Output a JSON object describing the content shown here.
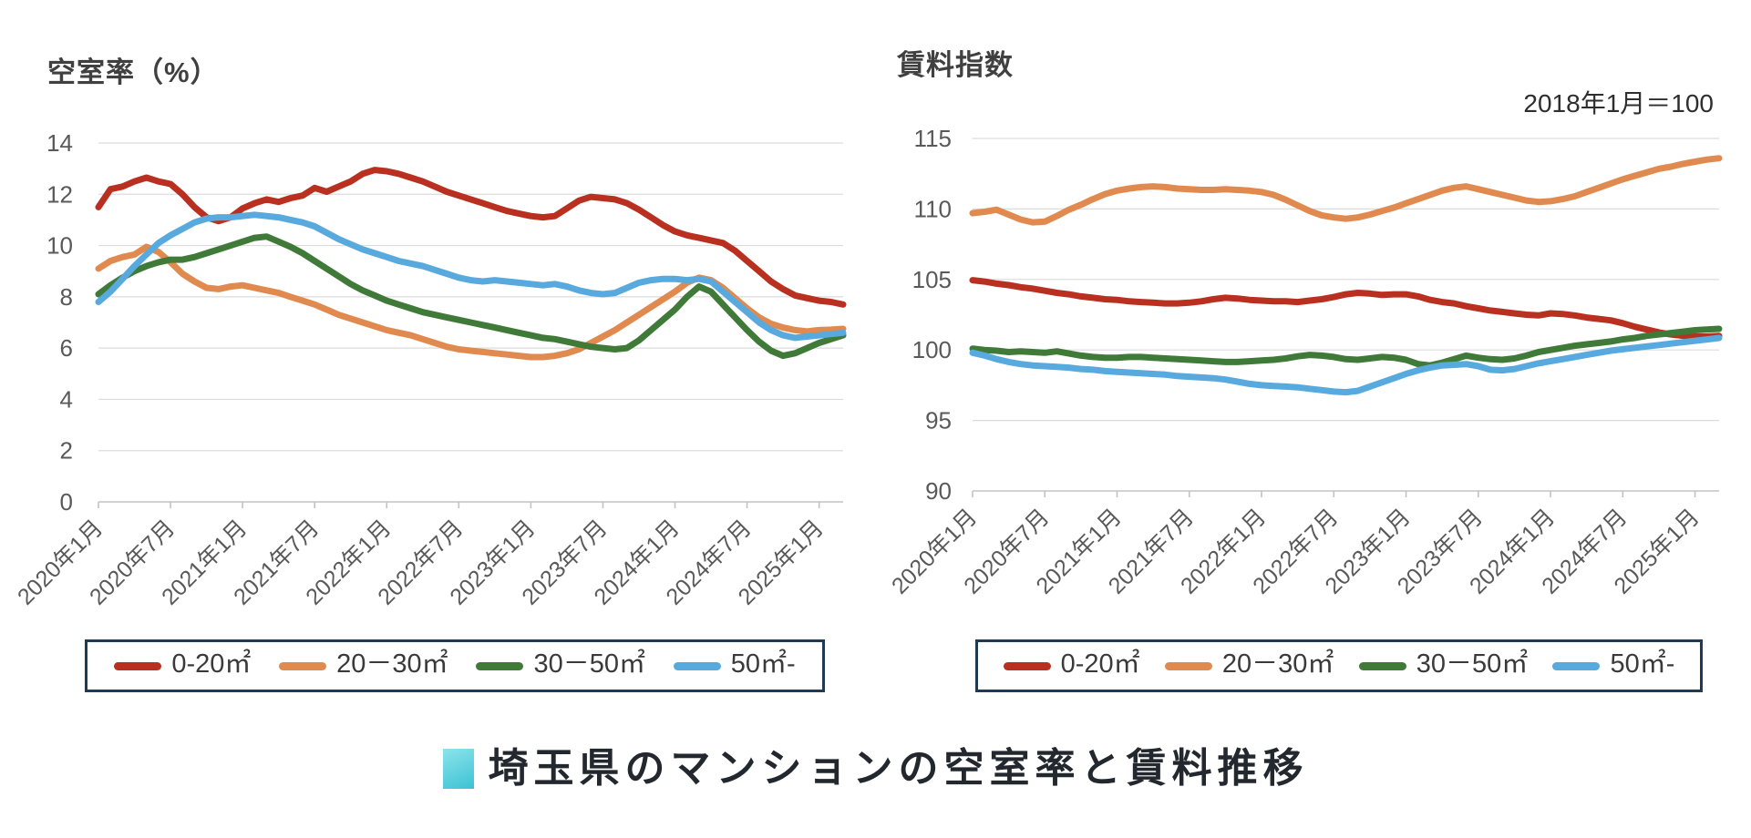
{
  "caption": {
    "text": "埼玉県のマンションの空室率と賃料推移",
    "accent_from": "#8ce4ec",
    "accent_to": "#3cc2d3"
  },
  "legend_border_color": "#203a54",
  "chart_data": [
    {
      "id": "vacancy-rate",
      "type": "line",
      "title": "空室率（%）",
      "xlabel": "",
      "ylabel": "空室率（%）",
      "ylim": [
        0,
        14
      ],
      "ytick_step": 2,
      "grid": true,
      "legend_position": "bottom",
      "x_start": "2020年1月",
      "x_interval": "monthly",
      "x_tick_labels": [
        "2020年1月",
        "2020年7月",
        "2021年1月",
        "2021年7月",
        "2022年1月",
        "2022年7月",
        "2023年1月",
        "2023年7月",
        "2024年1月",
        "2024年7月",
        "2025年1月"
      ],
      "series": [
        {
          "name": "0-20㎡",
          "color": "#b93020",
          "values": [
            11.5,
            12.2,
            12.3,
            12.5,
            12.65,
            12.5,
            12.4,
            12.0,
            11.5,
            11.1,
            10.95,
            11.1,
            11.45,
            11.65,
            11.8,
            11.7,
            11.85,
            11.95,
            12.25,
            12.1,
            12.3,
            12.5,
            12.8,
            12.95,
            12.9,
            12.8,
            12.65,
            12.5,
            12.3,
            12.1,
            11.95,
            11.8,
            11.65,
            11.5,
            11.35,
            11.25,
            11.15,
            11.1,
            11.15,
            11.45,
            11.75,
            11.9,
            11.85,
            11.8,
            11.65,
            11.4,
            11.1,
            10.8,
            10.55,
            10.4,
            10.3,
            10.2,
            10.1,
            9.8,
            9.4,
            9.0,
            8.6,
            8.3,
            8.05,
            7.95,
            7.85,
            7.8,
            7.7
          ]
        },
        {
          "name": "20－30㎡",
          "color": "#e18a50",
          "values": [
            9.1,
            9.4,
            9.55,
            9.65,
            9.95,
            9.75,
            9.35,
            8.9,
            8.6,
            8.35,
            8.3,
            8.4,
            8.45,
            8.35,
            8.25,
            8.15,
            8.0,
            7.85,
            7.7,
            7.5,
            7.3,
            7.15,
            7.0,
            6.85,
            6.7,
            6.6,
            6.5,
            6.35,
            6.2,
            6.05,
            5.95,
            5.9,
            5.85,
            5.8,
            5.75,
            5.7,
            5.65,
            5.65,
            5.7,
            5.8,
            5.95,
            6.2,
            6.45,
            6.7,
            7.0,
            7.3,
            7.6,
            7.9,
            8.2,
            8.55,
            8.75,
            8.65,
            8.35,
            7.95,
            7.55,
            7.2,
            6.95,
            6.8,
            6.7,
            6.65,
            6.7,
            6.72,
            6.75
          ]
        },
        {
          "name": "30－50㎡",
          "color": "#407a38",
          "values": [
            8.1,
            8.45,
            8.75,
            9.0,
            9.2,
            9.35,
            9.45,
            9.45,
            9.55,
            9.7,
            9.85,
            10.0,
            10.15,
            10.3,
            10.35,
            10.15,
            9.95,
            9.7,
            9.4,
            9.1,
            8.8,
            8.5,
            8.25,
            8.05,
            7.85,
            7.7,
            7.55,
            7.4,
            7.3,
            7.2,
            7.1,
            7.0,
            6.9,
            6.8,
            6.7,
            6.6,
            6.5,
            6.4,
            6.35,
            6.25,
            6.15,
            6.05,
            6.0,
            5.95,
            6.0,
            6.3,
            6.7,
            7.1,
            7.5,
            8.0,
            8.4,
            8.2,
            7.7,
            7.2,
            6.7,
            6.25,
            5.9,
            5.7,
            5.8,
            6.0,
            6.2,
            6.35,
            6.5
          ]
        },
        {
          "name": "50㎡-",
          "color": "#58a9dd",
          "values": [
            7.8,
            8.2,
            8.7,
            9.2,
            9.65,
            10.1,
            10.4,
            10.65,
            10.9,
            11.05,
            11.1,
            11.1,
            11.15,
            11.2,
            11.15,
            11.1,
            11.0,
            10.9,
            10.75,
            10.5,
            10.25,
            10.05,
            9.85,
            9.7,
            9.55,
            9.4,
            9.3,
            9.2,
            9.05,
            8.9,
            8.75,
            8.65,
            8.6,
            8.65,
            8.6,
            8.55,
            8.5,
            8.45,
            8.5,
            8.4,
            8.25,
            8.15,
            8.1,
            8.15,
            8.35,
            8.55,
            8.65,
            8.7,
            8.7,
            8.65,
            8.7,
            8.6,
            8.2,
            7.8,
            7.4,
            7.0,
            6.7,
            6.5,
            6.4,
            6.45,
            6.5,
            6.55,
            6.6
          ]
        }
      ]
    },
    {
      "id": "rent-index",
      "type": "line",
      "title": "賃料指数",
      "annotation": "2018年1月＝100",
      "xlabel": "",
      "ylabel": "賃料指数",
      "ylim": [
        90,
        115
      ],
      "ytick_step": 5,
      "grid": true,
      "legend_position": "bottom",
      "x_start": "2020年1月",
      "x_interval": "monthly",
      "x_tick_labels": [
        "2020年1月",
        "2020年7月",
        "2021年1月",
        "2021年7月",
        "2022年1月",
        "2022年7月",
        "2023年1月",
        "2023年7月",
        "2024年1月",
        "2024年7月",
        "2025年1月"
      ],
      "series": [
        {
          "name": "0-20㎡",
          "color": "#b93020",
          "values": [
            104.95,
            104.85,
            104.7,
            104.6,
            104.45,
            104.35,
            104.2,
            104.05,
            103.95,
            103.8,
            103.7,
            103.6,
            103.55,
            103.45,
            103.4,
            103.35,
            103.3,
            103.3,
            103.35,
            103.45,
            103.6,
            103.7,
            103.65,
            103.55,
            103.5,
            103.45,
            103.45,
            103.4,
            103.5,
            103.6,
            103.75,
            103.95,
            104.05,
            104.0,
            103.9,
            103.95,
            103.95,
            103.8,
            103.55,
            103.4,
            103.3,
            103.1,
            102.95,
            102.8,
            102.7,
            102.6,
            102.5,
            102.45,
            102.6,
            102.55,
            102.45,
            102.3,
            102.2,
            102.1,
            101.9,
            101.65,
            101.45,
            101.25,
            101.1,
            101.0,
            100.95,
            100.95,
            101.0
          ]
        },
        {
          "name": "20－30㎡",
          "color": "#e18a50",
          "values": [
            109.7,
            109.8,
            109.95,
            109.6,
            109.25,
            109.05,
            109.1,
            109.5,
            109.95,
            110.3,
            110.7,
            111.05,
            111.3,
            111.45,
            111.55,
            111.6,
            111.55,
            111.45,
            111.4,
            111.35,
            111.35,
            111.4,
            111.35,
            111.3,
            111.2,
            111.0,
            110.65,
            110.25,
            109.85,
            109.55,
            109.4,
            109.3,
            109.4,
            109.6,
            109.85,
            110.1,
            110.4,
            110.7,
            111.0,
            111.3,
            111.5,
            111.6,
            111.4,
            111.2,
            111.0,
            110.8,
            110.6,
            110.5,
            110.55,
            110.7,
            110.9,
            111.2,
            111.5,
            111.8,
            112.1,
            112.35,
            112.6,
            112.85,
            113.0,
            113.2,
            113.35,
            113.5,
            113.6
          ]
        },
        {
          "name": "30－50㎡",
          "color": "#407a38",
          "values": [
            100.1,
            100.0,
            99.95,
            99.85,
            99.9,
            99.85,
            99.8,
            99.9,
            99.75,
            99.6,
            99.5,
            99.45,
            99.45,
            99.5,
            99.5,
            99.45,
            99.4,
            99.35,
            99.3,
            99.25,
            99.2,
            99.15,
            99.15,
            99.2,
            99.25,
            99.3,
            99.4,
            99.55,
            99.65,
            99.6,
            99.5,
            99.35,
            99.3,
            99.4,
            99.5,
            99.45,
            99.3,
            99.0,
            98.9,
            99.1,
            99.35,
            99.6,
            99.45,
            99.35,
            99.3,
            99.4,
            99.6,
            99.85,
            100.0,
            100.15,
            100.3,
            100.4,
            100.5,
            100.6,
            100.75,
            100.85,
            101.0,
            101.1,
            101.2,
            101.3,
            101.4,
            101.45,
            101.5
          ]
        },
        {
          "name": "50㎡-",
          "color": "#58a9dd",
          "values": [
            99.8,
            99.6,
            99.35,
            99.15,
            99.0,
            98.9,
            98.85,
            98.8,
            98.75,
            98.65,
            98.6,
            98.5,
            98.45,
            98.4,
            98.35,
            98.3,
            98.25,
            98.15,
            98.1,
            98.05,
            98.0,
            97.9,
            97.75,
            97.6,
            97.5,
            97.45,
            97.4,
            97.35,
            97.25,
            97.15,
            97.05,
            97.0,
            97.1,
            97.4,
            97.7,
            98.0,
            98.3,
            98.55,
            98.75,
            98.9,
            98.95,
            99.0,
            98.85,
            98.6,
            98.55,
            98.65,
            98.85,
            99.05,
            99.2,
            99.35,
            99.5,
            99.65,
            99.8,
            99.95,
            100.05,
            100.15,
            100.25,
            100.35,
            100.45,
            100.55,
            100.65,
            100.75,
            100.85
          ]
        }
      ]
    }
  ]
}
